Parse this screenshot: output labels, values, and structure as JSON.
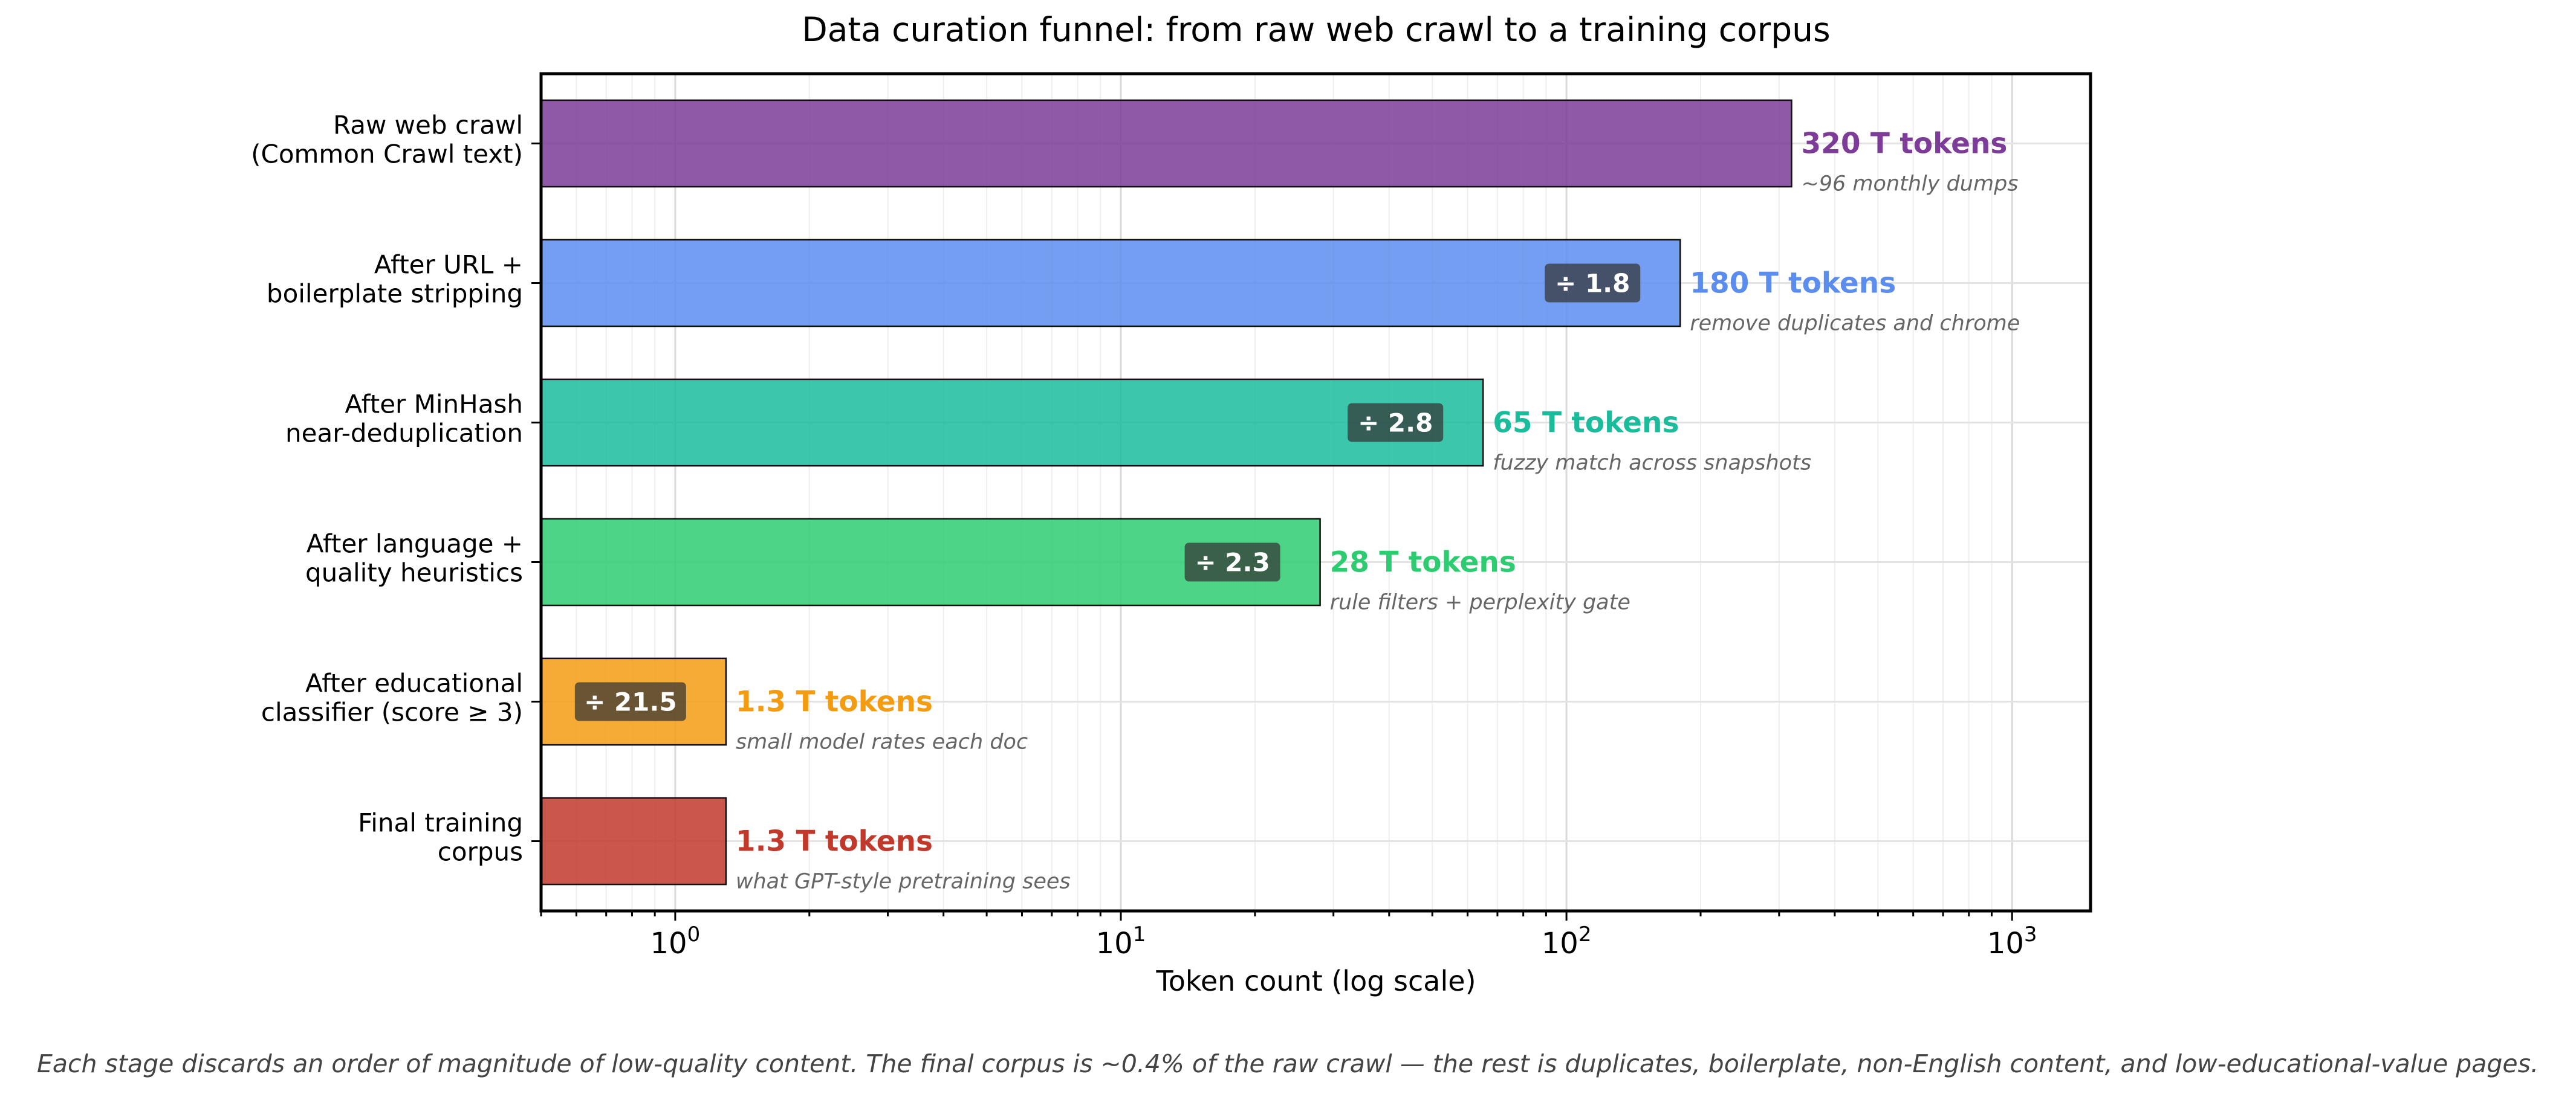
{
  "chart_data": {
    "type": "bar",
    "orientation": "horizontal",
    "title": "Data curation funnel: from raw web crawl to a training corpus",
    "xlabel": "Token count (log scale)",
    "xscale": "log",
    "xlim": [
      0.5,
      1500
    ],
    "x_ticks": [
      {
        "value": 1,
        "base": "10",
        "exp": "0"
      },
      {
        "value": 10,
        "base": "10",
        "exp": "1"
      },
      {
        "value": 100,
        "base": "10",
        "exp": "2"
      },
      {
        "value": 1000,
        "base": "10",
        "exp": "3"
      }
    ],
    "grid": true,
    "categories": [
      [
        "Raw web crawl",
        "(Common Crawl text)"
      ],
      [
        "After URL +",
        "boilerplate stripping"
      ],
      [
        "After MinHash",
        "near-deduplication"
      ],
      [
        "After language +",
        "quality heuristics"
      ],
      [
        "After educational",
        "classifier (score ≥ 3)"
      ],
      [
        "Final training",
        "corpus"
      ]
    ],
    "values": [
      320,
      180,
      65,
      28,
      1.3,
      1.3
    ],
    "value_labels": [
      "320 T tokens",
      "180 T tokens",
      "65 T tokens",
      "28 T tokens",
      "1.3 T tokens",
      "1.3 T tokens"
    ],
    "annotations": [
      "~96 monthly dumps",
      "remove duplicates and chrome",
      "fuzzy match across snapshots",
      "rule filters + perplexity gate",
      "small model rates each doc",
      "what GPT-style pretraining sees"
    ],
    "reduction_labels": [
      null,
      "÷ 1.8",
      "÷ 2.8",
      "÷ 2.3",
      "÷ 21.5",
      null
    ],
    "colors": [
      "#7d3c98",
      "#5b8def",
      "#1abc9c",
      "#2ecc71",
      "#f39c12",
      "#c0392b"
    ]
  },
  "footnote": "Each stage discards an order of magnitude of low-quality content. The final corpus is ~0.4% of the raw crawl — the rest is duplicates, boilerplate, non-English content, and low-educational-value pages."
}
